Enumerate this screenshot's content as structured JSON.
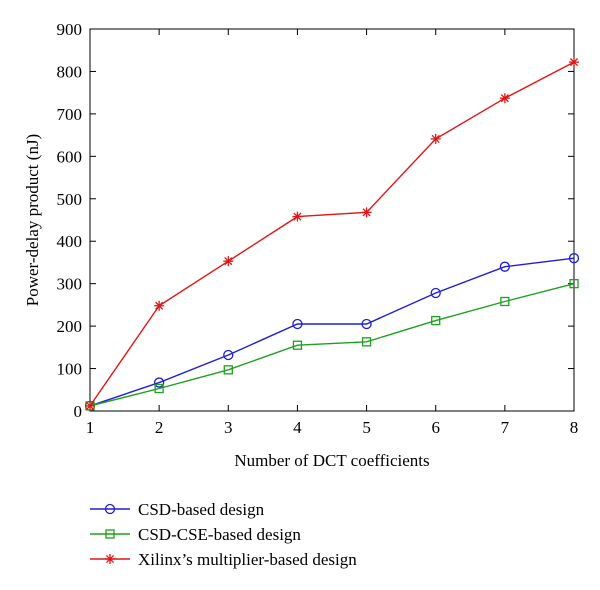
{
  "chart_data": {
    "type": "line",
    "xlabel": "Number of DCT coefficients",
    "ylabel": "Power-delay product (nJ)",
    "xlim": [
      1,
      8
    ],
    "ylim": [
      0,
      900
    ],
    "x_ticks": [
      "1",
      "2",
      "3",
      "4",
      "5",
      "6",
      "7",
      "8"
    ],
    "y_ticks": [
      "0",
      "100",
      "200",
      "300",
      "400",
      "500",
      "600",
      "700",
      "800",
      "900"
    ],
    "grid": false,
    "legend_position": "below-plot",
    "x": [
      1,
      2,
      3,
      4,
      5,
      6,
      7,
      8
    ],
    "series": [
      {
        "name": "CSD-based design",
        "color": "#1f1fd6",
        "marker": "circle",
        "values": [
          12,
          67,
          132,
          205,
          205,
          278,
          340,
          360
        ]
      },
      {
        "name": "CSD-CSE-based design",
        "color": "#1fa01f",
        "marker": "square",
        "values": [
          12,
          53,
          97,
          155,
          163,
          213,
          258,
          300
        ]
      },
      {
        "name": "Xilinx’s multiplier-based design",
        "color": "#e01515",
        "marker": "asterisk",
        "values": [
          12,
          248,
          353,
          458,
          468,
          641,
          737,
          822
        ]
      }
    ]
  }
}
